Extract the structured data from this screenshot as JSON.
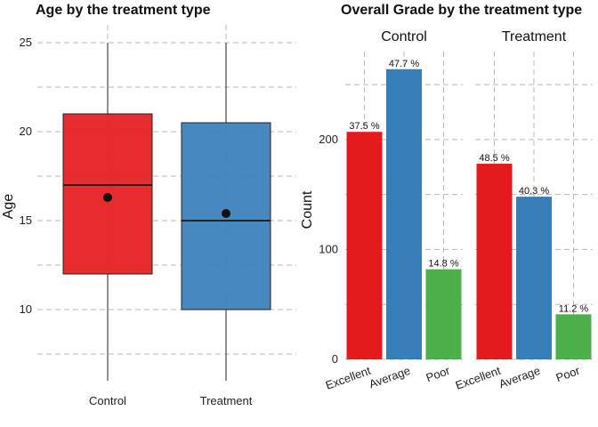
{
  "chart_data": [
    {
      "type": "box",
      "title": "Age by the treatment type",
      "xlabel": "",
      "ylabel": "Age",
      "ylim": [
        6,
        26
      ],
      "yticks": [
        10,
        15,
        20,
        25
      ],
      "grid": true,
      "categories": [
        "Control",
        "Treatment"
      ],
      "colors": [
        "#E41A1C",
        "#377EB8"
      ],
      "boxes": [
        {
          "name": "Control",
          "min": 6,
          "q1": 12,
          "median": 17,
          "q3": 21,
          "max": 25,
          "mean": 16.3
        },
        {
          "name": "Treatment",
          "min": 6,
          "q1": 10,
          "median": 15,
          "q3": 20.5,
          "max": 25,
          "mean": 15.4
        }
      ]
    },
    {
      "type": "bar",
      "title": "Overall Grade by the treatment type",
      "xlabel": "",
      "ylabel": "Count",
      "ylim": [
        0,
        280
      ],
      "yticks": [
        0,
        100,
        200
      ],
      "grid": true,
      "categories": [
        "Excellent",
        "Average",
        "Poor"
      ],
      "colors": [
        "#E41A1C",
        "#377EB8",
        "#4DAF4A"
      ],
      "panels": [
        {
          "name": "Control",
          "values": [
            207,
            264,
            82
          ],
          "labels": [
            "37.5 %",
            "47.7 %",
            "14.8 %"
          ]
        },
        {
          "name": "Treatment",
          "values": [
            178,
            148,
            41
          ],
          "labels": [
            "48.5 %",
            "40.3 %",
            "11.2 %"
          ]
        }
      ]
    }
  ]
}
